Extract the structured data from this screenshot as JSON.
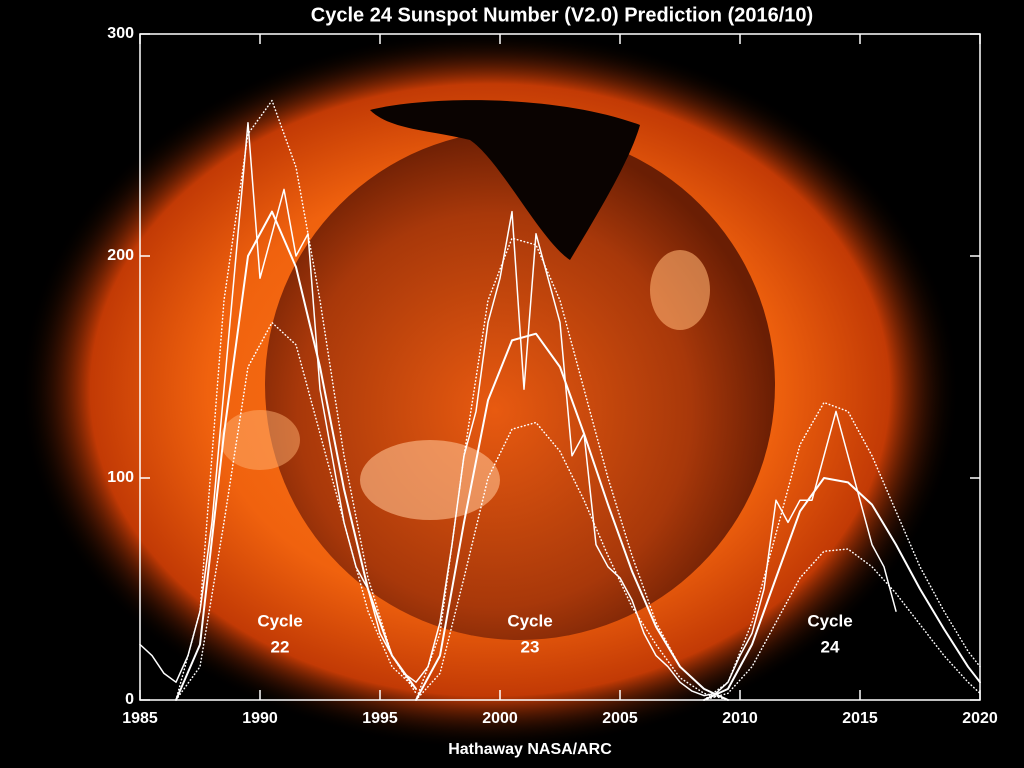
{
  "chart_data": {
    "type": "line",
    "title": "Cycle 24 Sunspot Number (V2.0) Prediction (2016/10)",
    "x_label": "Hathaway  NASA/ARC",
    "xlim": [
      1985,
      2020
    ],
    "xticks": [
      1985,
      1990,
      1995,
      2000,
      2005,
      2010,
      2015,
      2020
    ],
    "ylim": [
      0,
      300
    ],
    "yticks": [
      0,
      100,
      200,
      300
    ],
    "annotations": [
      {
        "lines": [
          "Cycle",
          "22"
        ]
      },
      {
        "lines": [
          "Cycle",
          "23"
        ]
      },
      {
        "lines": [
          "Cycle",
          "24"
        ]
      }
    ],
    "series": [
      {
        "color": "#ffffff",
        "style": "solid",
        "width": 1.5,
        "x": [
          1985.0,
          1985.5,
          1986.0,
          1986.5,
          1987.0,
          1987.5,
          1988.0,
          1988.5,
          1989.0,
          1989.5,
          1990.0,
          1990.5,
          1991.0,
          1991.5,
          1992.0,
          1992.5,
          1993.0,
          1993.5,
          1994.0,
          1994.5,
          1995.0,
          1995.5,
          1996.0,
          1996.5,
          1997.0,
          1997.5,
          1998.0,
          1998.5,
          1999.0,
          1999.5,
          2000.0,
          2000.5,
          2001.0,
          2001.5,
          2002.0,
          2002.5,
          2003.0,
          2003.5,
          2004.0,
          2004.5,
          2005.0,
          2005.5,
          2006.0,
          2006.5,
          2007.0,
          2007.5,
          2008.0,
          2008.5,
          2009.0,
          2009.5,
          2010.0,
          2010.5,
          2011.0,
          2011.5,
          2012.0,
          2012.5,
          2013.0,
          2013.5,
          2014.0,
          2014.5,
          2015.0,
          2015.5,
          2016.0,
          2016.5
        ],
        "values": [
          25,
          20,
          12,
          8,
          20,
          40,
          80,
          140,
          200,
          260,
          190,
          210,
          230,
          200,
          210,
          140,
          110,
          80,
          60,
          50,
          30,
          20,
          12,
          8,
          15,
          35,
          70,
          110,
          130,
          170,
          190,
          220,
          140,
          210,
          190,
          170,
          110,
          120,
          70,
          60,
          55,
          45,
          30,
          20,
          15,
          8,
          4,
          2,
          3,
          8,
          20,
          30,
          50,
          90,
          80,
          90,
          90,
          110,
          130,
          110,
          90,
          70,
          60,
          40
        ]
      },
      {
        "color": "#ffffff",
        "style": "solid",
        "width": 2,
        "x": [
          1986.5,
          1987.5,
          1988.5,
          1989.5,
          1990.5,
          1991.5,
          1992.5,
          1993.5,
          1994.5,
          1995.5,
          1996.5
        ],
        "values": [
          0,
          25,
          120,
          200,
          220,
          195,
          150,
          95,
          50,
          20,
          5
        ]
      },
      {
        "color": "#ffffff",
        "style": "dotted",
        "width": 1.5,
        "x": [
          1986.5,
          1987.5,
          1988.5,
          1989.5,
          1990.5,
          1991.5,
          1992.5,
          1993.5,
          1994.5,
          1995.5,
          1996.5
        ],
        "values": [
          0,
          40,
          180,
          255,
          270,
          240,
          180,
          110,
          55,
          20,
          3
        ]
      },
      {
        "color": "#ffffff",
        "style": "dotted",
        "width": 1.5,
        "x": [
          1986.5,
          1987.5,
          1988.5,
          1989.5,
          1990.5,
          1991.5,
          1992.5,
          1993.5,
          1994.5,
          1995.5,
          1996.5
        ],
        "values": [
          0,
          15,
          80,
          150,
          170,
          160,
          120,
          80,
          40,
          15,
          5
        ]
      },
      {
        "color": "#ffffff",
        "style": "solid",
        "width": 2,
        "x": [
          1996.5,
          1997.5,
          1998.5,
          1999.5,
          2000.5,
          2001.5,
          2002.5,
          2003.5,
          2004.5,
          2005.5,
          2006.5,
          2007.5,
          2008.5,
          2009.5
        ],
        "values": [
          0,
          20,
          80,
          135,
          162,
          165,
          150,
          120,
          88,
          58,
          33,
          15,
          5,
          0
        ]
      },
      {
        "color": "#ffffff",
        "style": "dotted",
        "width": 1.5,
        "x": [
          1996.5,
          1997.5,
          1998.5,
          1999.5,
          2000.5,
          2001.5,
          2002.5,
          2003.5,
          2004.5,
          2005.5,
          2006.5,
          2007.5,
          2008.5,
          2009.5
        ],
        "values": [
          0,
          30,
          110,
          180,
          208,
          205,
          180,
          140,
          100,
          65,
          35,
          15,
          5,
          0
        ]
      },
      {
        "color": "#ffffff",
        "style": "dotted",
        "width": 1.5,
        "x": [
          1996.5,
          1997.5,
          1998.5,
          1999.5,
          2000.5,
          2001.5,
          2002.5,
          2003.5,
          2004.5,
          2005.5,
          2006.5,
          2007.5,
          2008.5,
          2009.5
        ],
        "values": [
          0,
          12,
          55,
          100,
          122,
          125,
          112,
          90,
          65,
          42,
          25,
          10,
          3,
          0
        ]
      },
      {
        "color": "#ffffff",
        "style": "solid",
        "width": 2,
        "x": [
          2008.5,
          2009.5,
          2010.5,
          2011.5,
          2012.5,
          2013.5,
          2014.5,
          2015.5,
          2016.5,
          2017.5,
          2018.5,
          2019.5,
          2020
        ],
        "values": [
          0,
          5,
          25,
          55,
          85,
          100,
          98,
          88,
          70,
          50,
          32,
          15,
          8
        ]
      },
      {
        "color": "#ffffff",
        "style": "dotted",
        "width": 1.5,
        "x": [
          2008.5,
          2009.5,
          2010.5,
          2011.5,
          2012.5,
          2013.5,
          2014.5,
          2015.5,
          2016.5,
          2017.5,
          2018.5,
          2019.5,
          2020
        ],
        "values": [
          0,
          8,
          35,
          75,
          115,
          134,
          130,
          110,
          85,
          60,
          40,
          22,
          15
        ]
      },
      {
        "color": "#ffffff",
        "style": "dotted",
        "width": 1.5,
        "x": [
          2008.5,
          2009.5,
          2010.5,
          2011.5,
          2012.5,
          2013.5,
          2014.5,
          2015.5,
          2016.5,
          2017.5,
          2018.5,
          2019.5,
          2020
        ],
        "values": [
          0,
          3,
          15,
          35,
          55,
          67,
          68,
          60,
          48,
          34,
          20,
          8,
          3
        ]
      }
    ]
  }
}
